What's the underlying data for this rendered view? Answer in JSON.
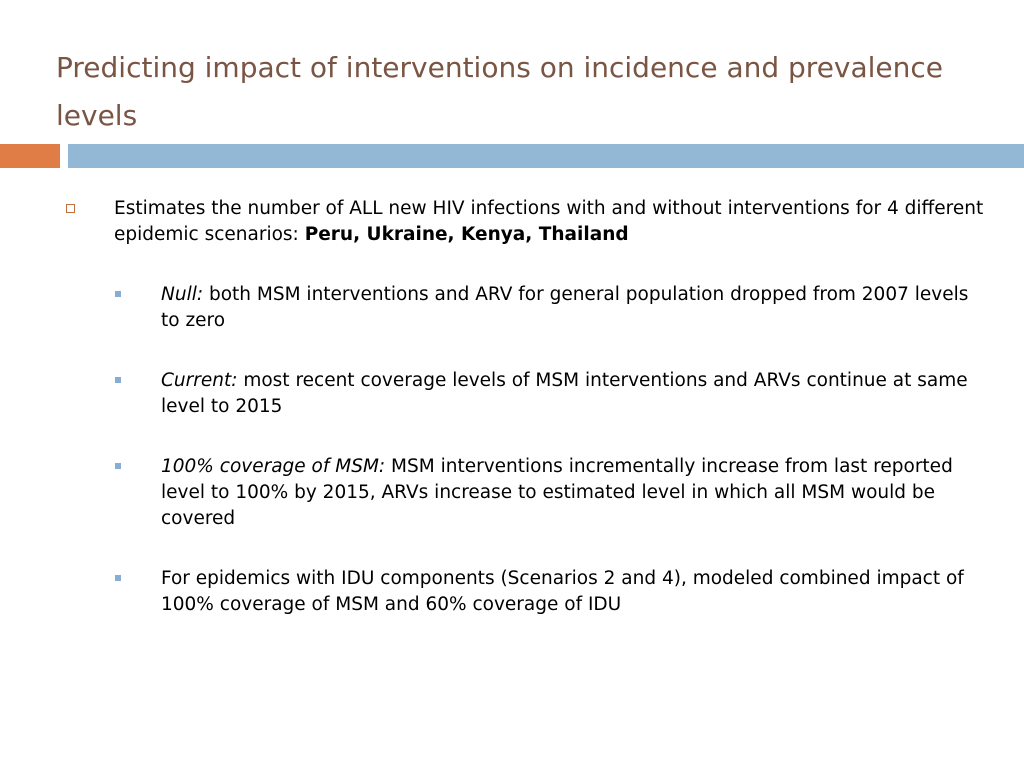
{
  "slide": {
    "title": "Predicting impact of interventions on incidence and prevalence levels",
    "accent_colors": {
      "title_text": "#7a5543",
      "bar_orange": "#e07c45",
      "bar_blue": "#93b8d5",
      "bullet_l1": "#c0703c",
      "bullet_l2": "#86aed0"
    }
  },
  "bullets": {
    "main": {
      "text": "Estimates the number of ALL new HIV infections with and without interventions for 4 different epidemic scenarios: ",
      "bold_text": "Peru, Ukraine, Kenya, Thailand"
    },
    "sub": [
      {
        "italic": "Null:",
        "text": " both MSM interventions and ARV for general population dropped from 2007 levels to zero"
      },
      {
        "italic": "Current:",
        "text": " most recent coverage levels of MSM interventions and ARVs continue at same level to 2015"
      },
      {
        "italic": "100% coverage of MSM:",
        "text": " MSM interventions incrementally increase from last reported level to 100% by 2015, ARVs increase to estimated level in which all MSM would be covered"
      },
      {
        "italic": "",
        "text": "For epidemics with IDU components (Scenarios 2 and 4), modeled combined impact of 100% coverage of MSM and 60% coverage of IDU"
      }
    ]
  }
}
